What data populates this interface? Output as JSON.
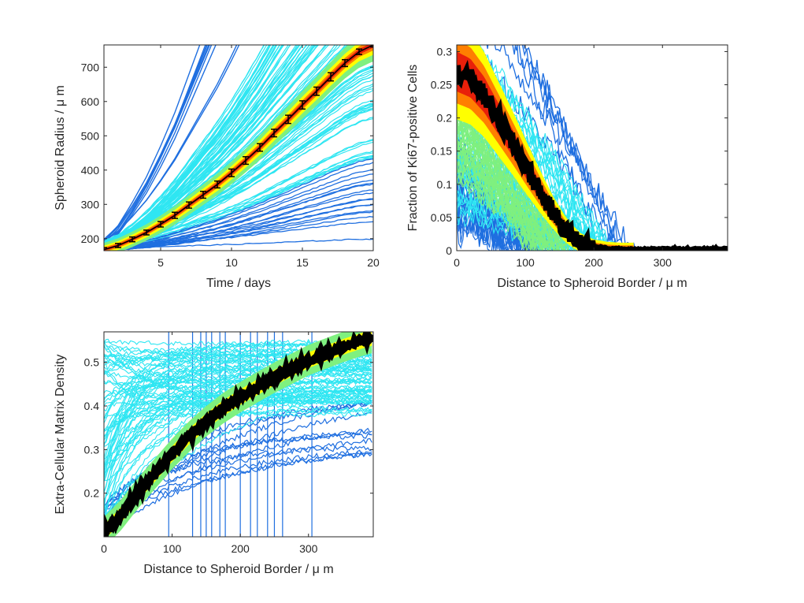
{
  "chart_data": [
    {
      "type": "line",
      "xlabel": "Time / days",
      "ylabel": "Spheroid Radius  / μ m",
      "xlim": [
        1,
        20
      ],
      "ylim": [
        165,
        765
      ],
      "xticks": [
        5,
        10,
        15,
        20
      ],
      "yticks": [
        200,
        300,
        400,
        500,
        600,
        700
      ],
      "grid": false,
      "legend": "none",
      "colors": {
        "dark_blue": "#1f6fe0",
        "cyan": "#2fe6f2",
        "green": "#7ff07f",
        "yellow": "#ffff00",
        "orange": "#ff7f00",
        "red": "#e8200a",
        "mean": "#000000"
      },
      "mean_series": {
        "x": [
          1,
          2,
          3,
          4,
          5,
          6,
          7,
          8,
          9,
          10,
          11,
          12,
          13,
          14,
          15,
          16,
          17,
          18,
          19,
          20
        ],
        "y": [
          168,
          180,
          198,
          218,
          242,
          268,
          298,
          328,
          358,
          392,
          428,
          466,
          508,
          548,
          590,
          630,
          672,
          712,
          745,
          765
        ],
        "error": [
          6,
          6,
          7,
          7,
          8,
          9,
          9,
          10,
          10,
          11,
          11,
          11,
          11,
          12,
          12,
          12,
          12,
          10,
          8,
          6
        ]
      }
    },
    {
      "type": "line",
      "xlabel": "Distance to Spheroid Border / μ m",
      "ylabel": "Fraction of Ki67-positive Cells",
      "xlim": [
        0,
        395
      ],
      "ylim": [
        0,
        0.31
      ],
      "xticks": [
        0,
        100,
        200,
        300
      ],
      "yticks": [
        0,
        0.05,
        0.1,
        0.15,
        0.2,
        0.25,
        0.3
      ],
      "grid": false,
      "legend": "none",
      "mean_series": {
        "x": [
          0,
          20,
          40,
          60,
          80,
          100,
          120,
          140,
          160,
          180,
          200,
          220,
          240,
          300,
          395
        ],
        "y": [
          0.27,
          0.26,
          0.235,
          0.2,
          0.165,
          0.128,
          0.092,
          0.058,
          0.03,
          0.012,
          0.004,
          0.001,
          0.0,
          0.0,
          0.0
        ]
      }
    },
    {
      "type": "line",
      "xlabel": "Distance to Spheroid Border / μ m",
      "ylabel": "Extra-Cellular Matrix Density",
      "xlim": [
        0,
        395
      ],
      "ylim": [
        0.1,
        0.57
      ],
      "xticks": [
        0,
        100,
        200,
        300
      ],
      "yticks": [
        0.2,
        0.3,
        0.4,
        0.5
      ],
      "grid": false,
      "legend": "none",
      "mean_series": {
        "x": [
          0,
          25,
          50,
          75,
          100,
          125,
          150,
          175,
          200,
          225,
          250,
          275,
          300,
          325,
          350,
          375,
          395
        ],
        "y": [
          0.11,
          0.15,
          0.2,
          0.245,
          0.29,
          0.33,
          0.365,
          0.395,
          0.42,
          0.443,
          0.465,
          0.485,
          0.505,
          0.52,
          0.535,
          0.548,
          0.557
        ]
      }
    }
  ]
}
